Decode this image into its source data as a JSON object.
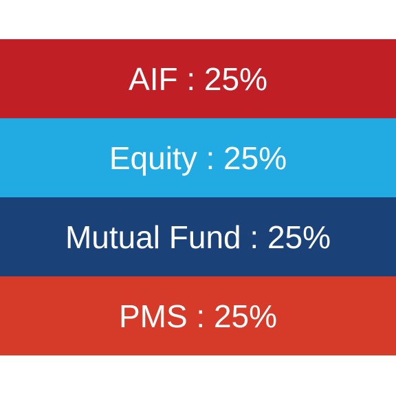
{
  "bands": [
    {
      "label": "AIF : 25%",
      "color": "#c11f26"
    },
    {
      "label": "Equity : 25%",
      "color": "#22abe2"
    },
    {
      "label": "Mutual Fund : 25%",
      "color": "#1a4178"
    },
    {
      "label": "PMS : 25%",
      "color": "#d63a28"
    }
  ]
}
